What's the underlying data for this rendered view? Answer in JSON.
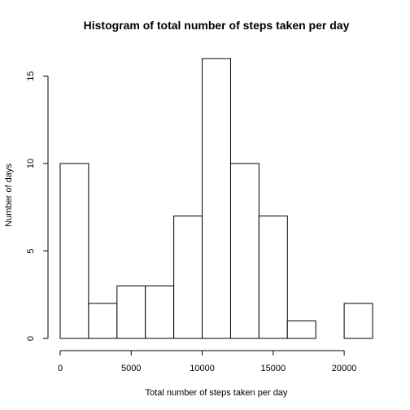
{
  "chart_data": {
    "type": "bar",
    "title": "Histogram of total number of steps taken per day",
    "xlabel": "Total number of steps taken per day",
    "ylabel": "Number of days",
    "bins": [
      {
        "from": 0,
        "to": 2000,
        "count": 10
      },
      {
        "from": 2000,
        "to": 4000,
        "count": 2
      },
      {
        "from": 4000,
        "to": 6000,
        "count": 3
      },
      {
        "from": 6000,
        "to": 8000,
        "count": 3
      },
      {
        "from": 8000,
        "to": 10000,
        "count": 7
      },
      {
        "from": 10000,
        "to": 12000,
        "count": 16
      },
      {
        "from": 12000,
        "to": 14000,
        "count": 10
      },
      {
        "from": 14000,
        "to": 16000,
        "count": 7
      },
      {
        "from": 16000,
        "to": 18000,
        "count": 1
      },
      {
        "from": 18000,
        "to": 20000,
        "count": 0
      },
      {
        "from": 20000,
        "to": 22000,
        "count": 2
      }
    ],
    "xlim": [
      0,
      22000
    ],
    "ylim": [
      0,
      16
    ],
    "xticks": [
      0,
      5000,
      10000,
      15000,
      20000
    ],
    "yticks": [
      0,
      5,
      10,
      15
    ],
    "bar_fill": "#ffffff",
    "bar_stroke": "#000000",
    "grid": false
  }
}
